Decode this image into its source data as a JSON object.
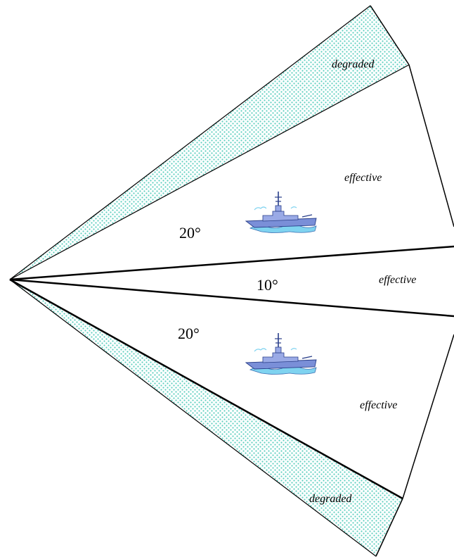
{
  "angles": {
    "upper_sector": "20°",
    "center_sector": "10°",
    "lower_sector": "20°"
  },
  "zones": {
    "upper_degraded": "degraded",
    "upper_effective": "effective",
    "center_effective": "effective",
    "lower_effective": "effective",
    "lower_degraded": "degraded"
  },
  "colors": {
    "degraded_dots": "#5fcfc0",
    "lines": "#000000",
    "ship_hull": "#7a8fd8",
    "ship_water": "#7fd3f0"
  },
  "icons": {
    "ship": "warship-icon"
  }
}
